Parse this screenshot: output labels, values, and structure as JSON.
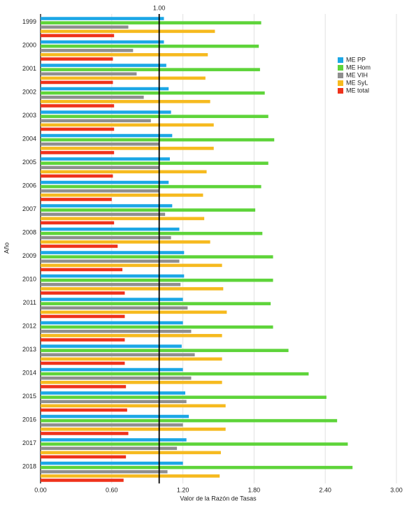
{
  "chart_data": {
    "type": "hbar",
    "x_label": "Valor de la Razón de Tasas",
    "y_label": "Año",
    "categories": [
      "1999",
      "2000",
      "2001",
      "2002",
      "2003",
      "2004",
      "2005",
      "2006",
      "2007",
      "2008",
      "2009",
      "2010",
      "2011",
      "2012",
      "2013",
      "2014",
      "2015",
      "2016",
      "2017",
      "2018"
    ],
    "series": [
      {
        "name": "ME PP",
        "color": "#1ca7e6",
        "values": [
          1.04,
          1.04,
          1.06,
          1.08,
          1.1,
          1.11,
          1.09,
          1.08,
          1.11,
          1.17,
          1.21,
          1.21,
          1.2,
          1.2,
          1.19,
          1.2,
          1.22,
          1.25,
          1.23,
          1.2
        ]
      },
      {
        "name": "ME Hom",
        "color": "#5ed43a",
        "values": [
          1.86,
          1.84,
          1.85,
          1.89,
          1.92,
          1.97,
          1.92,
          1.86,
          1.81,
          1.87,
          1.96,
          1.96,
          1.94,
          1.96,
          2.09,
          2.26,
          2.41,
          2.5,
          2.59,
          2.63
        ]
      },
      {
        "name": "ME VIH",
        "color": "#8f8f8f",
        "values": [
          0.74,
          0.78,
          0.81,
          0.87,
          0.93,
          1.0,
          1.0,
          1.0,
          1.05,
          1.1,
          1.17,
          1.18,
          1.24,
          1.27,
          1.3,
          1.27,
          1.23,
          1.2,
          1.15,
          1.07
        ]
      },
      {
        "name": "ME SyL",
        "color": "#f6ba1f",
        "values": [
          1.47,
          1.41,
          1.39,
          1.43,
          1.46,
          1.46,
          1.4,
          1.37,
          1.38,
          1.43,
          1.53,
          1.54,
          1.57,
          1.53,
          1.53,
          1.53,
          1.56,
          1.56,
          1.52,
          1.51
        ]
      },
      {
        "name": "ME total",
        "color": "#ef321b",
        "values": [
          0.62,
          0.61,
          0.61,
          0.62,
          0.62,
          0.62,
          0.61,
          0.6,
          0.62,
          0.65,
          0.69,
          0.71,
          0.71,
          0.71,
          0.71,
          0.72,
          0.73,
          0.74,
          0.72,
          0.7
        ]
      }
    ],
    "xlim": [
      0,
      3.2
    ],
    "xticks": [
      {
        "value": 0,
        "label": "0.00"
      },
      {
        "value": 0.6,
        "label": "0.60"
      },
      {
        "value": 1.2,
        "label": "1.20"
      },
      {
        "value": 1.8,
        "label": "1.80"
      },
      {
        "value": 2.4,
        "label": "2.40"
      },
      {
        "value": 3.0,
        "label": "3.00"
      }
    ],
    "reference_line": {
      "value": 1,
      "label": "1.00"
    },
    "grid": true,
    "legend": "right"
  }
}
